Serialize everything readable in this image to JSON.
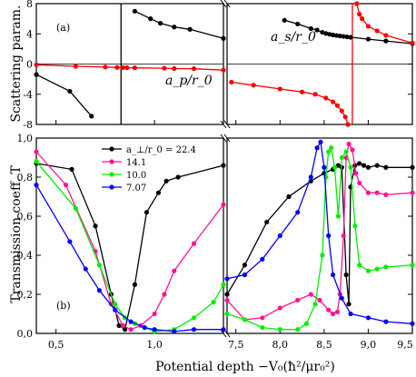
{
  "chart_data": [
    {
      "type": "line",
      "panel_label": "(a)",
      "ylabel": "Scattering param.",
      "ylim": [
        -8,
        8
      ],
      "yticks": [
        -8,
        -4,
        0,
        4,
        8
      ],
      "grid": false,
      "left_xlim": [
        0.4,
        1.35
      ],
      "right_xlim": [
        7.4,
        9.5
      ],
      "annotations": [
        "a_p/r_0",
        "a_s/r_0"
      ],
      "series": [
        {
          "name": "a_s/r_0",
          "color": "#000000",
          "segments": [
            [
              [
                0.4,
                -1.4
              ],
              [
                0.57,
                -3.6
              ],
              [
                0.68,
                -6.9
              ]
            ],
            [
              [
                0.9,
                7.0
              ],
              [
                0.98,
                6.0
              ],
              [
                1.03,
                5.4
              ],
              [
                1.1,
                4.9
              ],
              [
                1.18,
                4.6
              ],
              [
                1.35,
                3.4
              ]
            ],
            [
              [
                8.05,
                5.8
              ],
              [
                8.2,
                5.3
              ],
              [
                8.35,
                4.7
              ],
              [
                8.42,
                4.5
              ],
              [
                8.48,
                4.2
              ],
              [
                8.52,
                4.05
              ],
              [
                8.56,
                3.95
              ],
              [
                8.6,
                3.85
              ],
              [
                8.64,
                3.78
              ],
              [
                8.68,
                3.72
              ],
              [
                8.72,
                3.66
              ],
              [
                8.76,
                3.6
              ],
              [
                8.8,
                3.55
              ],
              [
                9.0,
                3.3
              ],
              [
                9.2,
                3.05
              ],
              [
                9.5,
                2.7
              ]
            ]
          ]
        },
        {
          "name": "a_p/r_0",
          "color": "#ff0000",
          "segments": [
            [
              [
                0.4,
                -0.1
              ],
              [
                0.6,
                -0.3
              ],
              [
                0.75,
                -0.4
              ],
              [
                0.81,
                -0.45
              ],
              [
                0.84,
                -0.47
              ],
              [
                0.86,
                -0.48
              ],
              [
                0.9,
                -0.5
              ],
              [
                1.05,
                -0.55
              ],
              [
                1.1,
                -0.6
              ],
              [
                1.2,
                -0.62
              ],
              [
                1.35,
                -0.8
              ]
            ],
            [
              [
                7.45,
                -2.4
              ],
              [
                7.7,
                -2.8
              ],
              [
                8.0,
                -3.3
              ],
              [
                8.25,
                -3.7
              ],
              [
                8.4,
                -4.0
              ],
              [
                8.52,
                -4.5
              ],
              [
                8.6,
                -5.0
              ],
              [
                8.65,
                -5.5
              ],
              [
                8.7,
                -6.2
              ],
              [
                8.74,
                -7.0
              ],
              [
                8.77,
                -8.0
              ]
            ],
            [
              [
                8.87,
                8.0
              ],
              [
                8.9,
                6.6
              ],
              [
                8.93,
                6.0
              ],
              [
                9.0,
                5.0
              ],
              [
                9.1,
                4.4
              ],
              [
                9.2,
                3.8
              ],
              [
                9.5,
                2.8
              ]
            ]
          ]
        }
      ]
    },
    {
      "type": "line",
      "panel_label": "(b)",
      "ylabel": "Transmission coeff. T",
      "xlabel": "Potential depth -V_0(ħ²/μr_0²)",
      "ylim": [
        0.0,
        1.0
      ],
      "yticks": [
        0.0,
        0.2,
        0.4,
        0.6,
        0.8,
        1.0
      ],
      "yticklabels": [
        "0,0",
        "0,2",
        "0,4",
        "0,6",
        "0,8",
        "1,0"
      ],
      "left_xlim": [
        0.4,
        1.35
      ],
      "left_xticks": [
        0.5,
        1.0
      ],
      "left_xticklabels": [
        "0,5",
        "1,0"
      ],
      "right_xlim": [
        7.4,
        9.5
      ],
      "right_xticks": [
        7.5,
        8.0,
        8.5,
        9.0,
        9.5
      ],
      "right_xticklabels": [
        "7,5",
        "8,0",
        "8,5",
        "9,0",
        "9,5"
      ],
      "grid": false,
      "legend": "top-left inside",
      "series": [
        {
          "name": "a_⊥/r_0 = 22.4",
          "color": "#000000",
          "left": [
            [
              0.4,
              0.87
            ],
            [
              0.58,
              0.84
            ],
            [
              0.7,
              0.55
            ],
            [
              0.78,
              0.2
            ],
            [
              0.82,
              0.04
            ],
            [
              0.85,
              0.02
            ],
            [
              0.9,
              0.25
            ],
            [
              0.96,
              0.62
            ],
            [
              1.02,
              0.72
            ],
            [
              1.06,
              0.78
            ],
            [
              1.12,
              0.8
            ],
            [
              1.35,
              0.86
            ]
          ],
          "right": [
            [
              7.4,
              0.2
            ],
            [
              7.6,
              0.35
            ],
            [
              7.85,
              0.57
            ],
            [
              8.1,
              0.7
            ],
            [
              8.35,
              0.78
            ],
            [
              8.5,
              0.82
            ],
            [
              8.6,
              0.84
            ],
            [
              8.66,
              0.86
            ],
            [
              8.7,
              0.85
            ],
            [
              8.75,
              0.3
            ],
            [
              8.78,
              0.15
            ],
            [
              8.8,
              0.75
            ],
            [
              8.85,
              0.86
            ],
            [
              8.9,
              0.87
            ],
            [
              8.95,
              0.86
            ],
            [
              9.0,
              0.85
            ],
            [
              9.1,
              0.86
            ],
            [
              9.2,
              0.85
            ],
            [
              9.5,
              0.85
            ]
          ]
        },
        {
          "name": "14.1",
          "color": "#ff1493",
          "left": [
            [
              0.4,
              0.93
            ],
            [
              0.55,
              0.76
            ],
            [
              0.7,
              0.42
            ],
            [
              0.78,
              0.15
            ],
            [
              0.84,
              0.04
            ],
            [
              0.88,
              0.02
            ],
            [
              0.93,
              0.04
            ],
            [
              1.0,
              0.1
            ],
            [
              1.05,
              0.2
            ],
            [
              1.1,
              0.32
            ],
            [
              1.2,
              0.46
            ],
            [
              1.35,
              0.66
            ]
          ],
          "right": [
            [
              7.4,
              0.17
            ],
            [
              7.6,
              0.07
            ],
            [
              7.8,
              0.08
            ],
            [
              8.0,
              0.13
            ],
            [
              8.2,
              0.17
            ],
            [
              8.35,
              0.2
            ],
            [
              8.45,
              0.17
            ],
            [
              8.55,
              0.12
            ],
            [
              8.6,
              0.1
            ],
            [
              8.65,
              0.11
            ],
            [
              8.68,
              0.2
            ],
            [
              8.72,
              0.5
            ],
            [
              8.75,
              0.9
            ],
            [
              8.78,
              0.97
            ],
            [
              8.82,
              0.94
            ],
            [
              8.86,
              0.82
            ],
            [
              8.9,
              0.77
            ],
            [
              9.0,
              0.72
            ],
            [
              9.1,
              0.72
            ],
            [
              9.2,
              0.71
            ],
            [
              9.5,
              0.72
            ]
          ]
        },
        {
          "name": "10.0",
          "color": "#00ee00",
          "left": [
            [
              0.4,
              0.88
            ],
            [
              0.6,
              0.64
            ],
            [
              0.72,
              0.35
            ],
            [
              0.8,
              0.15
            ],
            [
              0.85,
              0.08
            ],
            [
              0.9,
              0.05
            ],
            [
              0.95,
              0.03
            ],
            [
              1.0,
              0.01
            ],
            [
              1.1,
              0.02
            ],
            [
              1.2,
              0.08
            ],
            [
              1.3,
              0.16
            ],
            [
              1.35,
              0.25
            ]
          ],
          "right": [
            [
              7.4,
              0.1
            ],
            [
              7.6,
              0.07
            ],
            [
              7.8,
              0.03
            ],
            [
              8.0,
              0.02
            ],
            [
              8.2,
              0.02
            ],
            [
              8.3,
              0.05
            ],
            [
              8.4,
              0.15
            ],
            [
              8.48,
              0.4
            ],
            [
              8.52,
              0.8
            ],
            [
              8.55,
              0.93
            ],
            [
              8.58,
              0.95
            ],
            [
              8.62,
              0.85
            ],
            [
              8.66,
              0.6
            ],
            [
              8.7,
              0.9
            ],
            [
              8.75,
              0.93
            ],
            [
              8.8,
              0.85
            ],
            [
              8.85,
              0.55
            ],
            [
              8.9,
              0.35
            ],
            [
              9.0,
              0.32
            ],
            [
              9.1,
              0.33
            ],
            [
              9.2,
              0.34
            ],
            [
              9.5,
              0.35
            ]
          ]
        },
        {
          "name": "7.07",
          "color": "#0000ff",
          "left": [
            [
              0.4,
              0.76
            ],
            [
              0.57,
              0.47
            ],
            [
              0.65,
              0.33
            ],
            [
              0.72,
              0.22
            ],
            [
              0.8,
              0.12
            ],
            [
              0.88,
              0.06
            ],
            [
              0.95,
              0.03
            ],
            [
              1.0,
              0.02
            ],
            [
              1.1,
              0.01
            ],
            [
              1.2,
              0.02
            ],
            [
              1.35,
              0.02
            ]
          ],
          "right": [
            [
              7.4,
              0.28
            ],
            [
              7.6,
              0.3
            ],
            [
              7.8,
              0.38
            ],
            [
              8.0,
              0.5
            ],
            [
              8.2,
              0.62
            ],
            [
              8.35,
              0.8
            ],
            [
              8.42,
              0.95
            ],
            [
              8.46,
              0.98
            ],
            [
              8.5,
              0.85
            ],
            [
              8.55,
              0.5
            ],
            [
              8.6,
              0.3
            ],
            [
              8.7,
              0.18
            ],
            [
              8.8,
              0.1
            ],
            [
              9.0,
              0.08
            ],
            [
              9.2,
              0.06
            ],
            [
              9.5,
              0.05
            ]
          ]
        }
      ]
    }
  ],
  "labels": {
    "panel_a": "(a)",
    "panel_b": "(b)",
    "ylabel_a": "Scattering param.",
    "ylabel_b": "Transmission coeff. T",
    "xlabel": "Potential depth −V₀(ħ²/μr₀²)",
    "ann_as": "a_s/r_0",
    "ann_ap": "a_p/r_0"
  }
}
